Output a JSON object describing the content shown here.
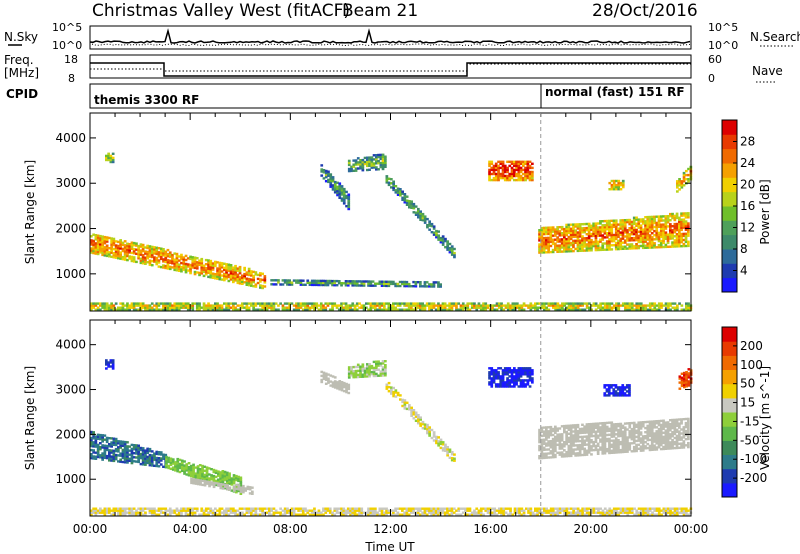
{
  "header": {
    "radar": "Christmas Valley West (fitACF)",
    "beam": "Beam 21",
    "date": "28/Oct/2016"
  },
  "nsky_panel": {
    "left_label": "N.Sky",
    "right_label": "N.Search",
    "left_ticks": [
      "10^5",
      "10^0"
    ],
    "right_ticks": [
      "10^5",
      "10^0"
    ]
  },
  "freq_panel": {
    "left_label_1": "Freq.",
    "left_label_2": "[MHz]",
    "right_label": "Nave",
    "left_ticks": [
      "18",
      "8"
    ],
    "right_ticks": [
      "60",
      "0"
    ]
  },
  "cpid_panel": {
    "label": "CPID",
    "mode1": "themis 3300 RF",
    "mode2": "normal (fast) 151 RF",
    "mode_change_hour": 18.0
  },
  "colors": {
    "power_scale": [
      "#1a1aff",
      "#1e3bb0",
      "#2d6b9a",
      "#3d8a6a",
      "#4ea05a",
      "#6fbf2a",
      "#b8d21a",
      "#f0d000",
      "#f5a000",
      "#f06a00",
      "#e83a00",
      "#dd0000"
    ],
    "velocity_scale": [
      "#1a1aff",
      "#1e3bb0",
      "#2d7b8a",
      "#3d8a5a",
      "#5eb84a",
      "#8ecf3a",
      "#c8c8c0",
      "#f0d000",
      "#f5a000",
      "#f06a00",
      "#e83a00",
      "#dd0000"
    ],
    "ground_scatter": "#bdbdb2"
  },
  "chart_data": [
    {
      "type": "heatmap",
      "panel": "power",
      "xlabel": "",
      "ylabel": "Slant Range [km]",
      "colorbar_label": "Power [dB]",
      "colorbar_ticks": [
        "4",
        "8",
        "12",
        "16",
        "20",
        "24",
        "28"
      ],
      "colorbar_range": [
        0,
        32
      ],
      "xlim": [
        0,
        24
      ],
      "ylim": [
        180,
        4550
      ],
      "y_ticks": [
        "1000",
        "2000",
        "3000",
        "4000"
      ],
      "y_tick_values": [
        1000,
        2000,
        3000,
        4000
      ],
      "regions": [
        {
          "t0": 0.0,
          "t1": 7.0,
          "r0": [
            1900,
            1000
          ],
          "r1": [
            1450,
            650
          ],
          "value": 22
        },
        {
          "t0": 0.6,
          "t1": 0.9,
          "r0": [
            3450,
            3450
          ],
          "r1": [
            3650,
            3650
          ],
          "value": 14
        },
        {
          "t0": 9.2,
          "t1": 10.3,
          "r0": [
            3150,
            2400
          ],
          "r1": [
            3400,
            2750
          ],
          "value": 9
        },
        {
          "t0": 10.3,
          "t1": 11.8,
          "r0": [
            3250,
            3300
          ],
          "r1": [
            3500,
            3650
          ],
          "value": 11
        },
        {
          "t0": 11.8,
          "t1": 14.5,
          "r0": [
            3000,
            1350
          ],
          "r1": [
            3200,
            1550
          ],
          "value": 10
        },
        {
          "t0": 15.9,
          "t1": 17.7,
          "r0": [
            3050,
            3050
          ],
          "r1": [
            3500,
            3500
          ],
          "value": 26
        },
        {
          "t0": 17.9,
          "t1": 23.9,
          "r0": [
            1450,
            1600
          ],
          "r1": [
            2000,
            2350
          ],
          "value": 22
        },
        {
          "t0": 20.7,
          "t1": 21.3,
          "r0": [
            2850,
            2850
          ],
          "r1": [
            3050,
            3050
          ],
          "value": 20
        },
        {
          "t0": 23.4,
          "t1": 24.0,
          "r0": [
            2800,
            3100
          ],
          "r1": [
            3050,
            3400
          ],
          "value": 20
        },
        {
          "t0": 7.2,
          "t1": 14.0,
          "r0": [
            750,
            700
          ],
          "r1": [
            850,
            800
          ],
          "value": 10
        },
        {
          "t0": 0.0,
          "t1": 24.0,
          "r0": [
            190,
            190
          ],
          "r1": [
            330,
            330
          ],
          "value": 18
        }
      ]
    },
    {
      "type": "heatmap",
      "panel": "velocity",
      "xlabel": "Time UT",
      "ylabel": "Slant Range [km]",
      "colorbar_label": "Velocity [m s^-1]",
      "colorbar_ticks": [
        "-200",
        "-100",
        "-50",
        "-15",
        "15",
        "50",
        "100",
        "200"
      ],
      "colorbar_range": [
        -250,
        250
      ],
      "xlim": [
        0,
        24
      ],
      "ylim": [
        180,
        4550
      ],
      "x_ticks": [
        "00:00",
        "04:00",
        "08:00",
        "12:00",
        "16:00",
        "20:00",
        "00:00"
      ],
      "x_tick_values": [
        0,
        4,
        8,
        12,
        16,
        20,
        24
      ],
      "y_ticks": [
        "1000",
        "2000",
        "3000",
        "4000"
      ],
      "y_tick_values": [
        1000,
        2000,
        3000,
        4000
      ],
      "regions": [
        {
          "t0": 0.0,
          "t1": 3.0,
          "r0": [
            2050,
            1550
          ],
          "r1": [
            1450,
            1250
          ],
          "value": -150
        },
        {
          "t0": 3.0,
          "t1": 6.0,
          "r0": [
            1500,
            1050
          ],
          "r1": [
            1250,
            650
          ],
          "value": -40
        },
        {
          "t0": 4.0,
          "t1": 6.5,
          "r0": [
            1000,
            800
          ],
          "r1": [
            900,
            650
          ],
          "value": 0,
          "ground": true
        },
        {
          "t0": 0.6,
          "t1": 0.9,
          "r0": [
            3450,
            3450
          ],
          "r1": [
            3650,
            3650
          ],
          "value": -220
        },
        {
          "t0": 9.2,
          "t1": 10.3,
          "r0": [
            3150,
            2900
          ],
          "r1": [
            3400,
            3100
          ],
          "value": 0,
          "ground": true
        },
        {
          "t0": 10.3,
          "t1": 11.8,
          "r0": [
            3250,
            3300
          ],
          "r1": [
            3500,
            3650
          ],
          "value": -20
        },
        {
          "t0": 11.8,
          "t1": 14.5,
          "r0": [
            3000,
            1350
          ],
          "r1": [
            3200,
            1550
          ],
          "value": 30
        },
        {
          "t0": 15.9,
          "t1": 17.7,
          "r0": [
            3050,
            3050
          ],
          "r1": [
            3500,
            3500
          ],
          "value": -220
        },
        {
          "t0": 17.9,
          "t1": 23.9,
          "r0": [
            1450,
            1700
          ],
          "r1": [
            2150,
            2350
          ],
          "value": 0,
          "ground": true
        },
        {
          "t0": 20.5,
          "t1": 21.5,
          "r0": [
            2850,
            2850
          ],
          "r1": [
            3100,
            3100
          ],
          "value": -220
        },
        {
          "t0": 23.5,
          "t1": 24.0,
          "r0": [
            3000,
            3100
          ],
          "r1": [
            3300,
            3500
          ],
          "value": 180
        },
        {
          "t0": 0.0,
          "t1": 24.0,
          "r0": [
            190,
            190
          ],
          "r1": [
            330,
            330
          ],
          "value": 40
        }
      ]
    }
  ]
}
